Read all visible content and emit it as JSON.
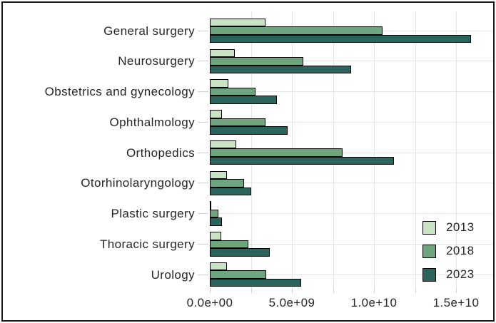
{
  "window": {
    "background_color": "#ffffff",
    "border_color": "#1a1a1a"
  },
  "chart_data": {
    "type": "bar",
    "orientation": "horizontal",
    "title": "",
    "xlabel": "",
    "ylabel": "",
    "grid": true,
    "grid_color": "#e4e4e4",
    "bar_border_color": "#000000",
    "text_color": "#262626",
    "categories": [
      "General surgery",
      "Neurosurgery",
      "Obstetrics and gynecology",
      "Ophthalmology",
      "Orthopedics",
      "Otorhinolaryngology",
      "Plastic surgery",
      "Thoracic surgery",
      "Urology"
    ],
    "series": [
      {
        "name": "2013",
        "color": "#c9e2c3",
        "values": [
          3400000000,
          1500000000,
          1150000000,
          750000000,
          1600000000,
          1050000000,
          100000000,
          700000000,
          1050000000
        ]
      },
      {
        "name": "2018",
        "color": "#6fa57e",
        "values": [
          10500000000,
          5700000000,
          2800000000,
          3400000000,
          8100000000,
          2100000000,
          500000000,
          2350000000,
          3450000000
        ]
      },
      {
        "name": "2023",
        "color": "#2a645c",
        "values": [
          15900000000,
          8600000000,
          4100000000,
          4750000000,
          11200000000,
          2500000000,
          750000000,
          3650000000,
          5550000000
        ]
      }
    ],
    "x_axis": {
      "range": [
        0,
        17200000000
      ],
      "labeled_ticks": [
        {
          "value": 0,
          "label": "0.0e+00"
        },
        {
          "value": 5000000000,
          "label": "5.0e+09"
        },
        {
          "value": 10000000000,
          "label": "1.0e+10"
        },
        {
          "value": 15000000000,
          "label": "1.5e+10"
        }
      ],
      "tick_values": [
        0,
        2500000000,
        5000000000,
        7500000000,
        10000000000,
        12500000000,
        15000000000
      ],
      "gridline_values": [
        2500000000,
        5000000000,
        7500000000,
        10000000000,
        12500000000,
        15000000000
      ]
    },
    "legend": {
      "position": "inside-bottom-right",
      "entries": [
        "2013",
        "2018",
        "2023"
      ]
    }
  }
}
